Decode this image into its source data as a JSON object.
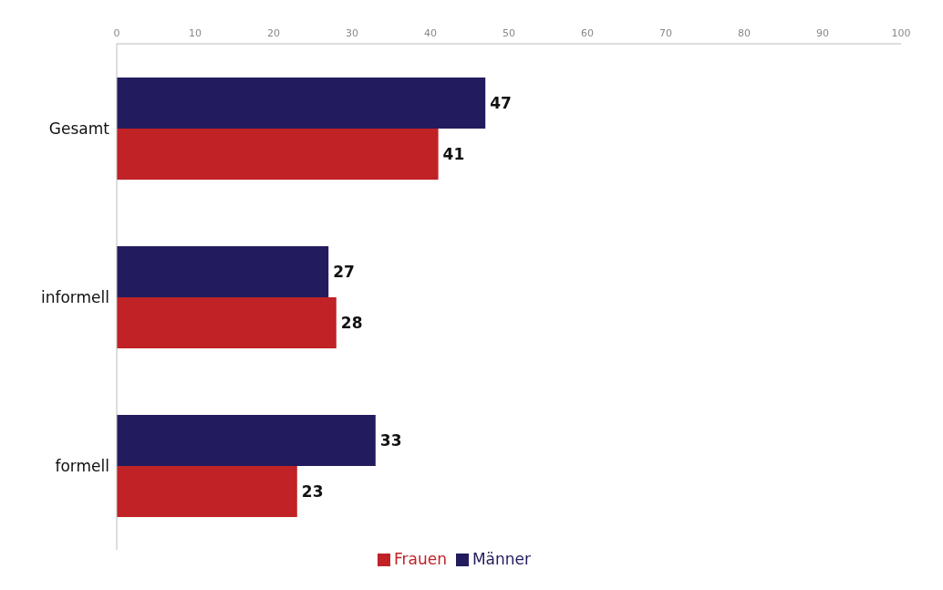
{
  "chart_data": {
    "type": "bar",
    "orientation": "horizontal",
    "categories": [
      "Gesamt",
      "informell",
      "formell"
    ],
    "series": [
      {
        "name": "Männer",
        "color": "#221c5e",
        "values": [
          47,
          27,
          33
        ]
      },
      {
        "name": "Frauen",
        "color": "#c02226",
        "values": [
          41,
          28,
          23
        ]
      }
    ],
    "xlim": [
      0,
      100
    ],
    "xticks": [
      0,
      10,
      20,
      30,
      40,
      50,
      60,
      70,
      80,
      90,
      100
    ],
    "data_labels": true,
    "legend": "bottom",
    "grid": false
  }
}
